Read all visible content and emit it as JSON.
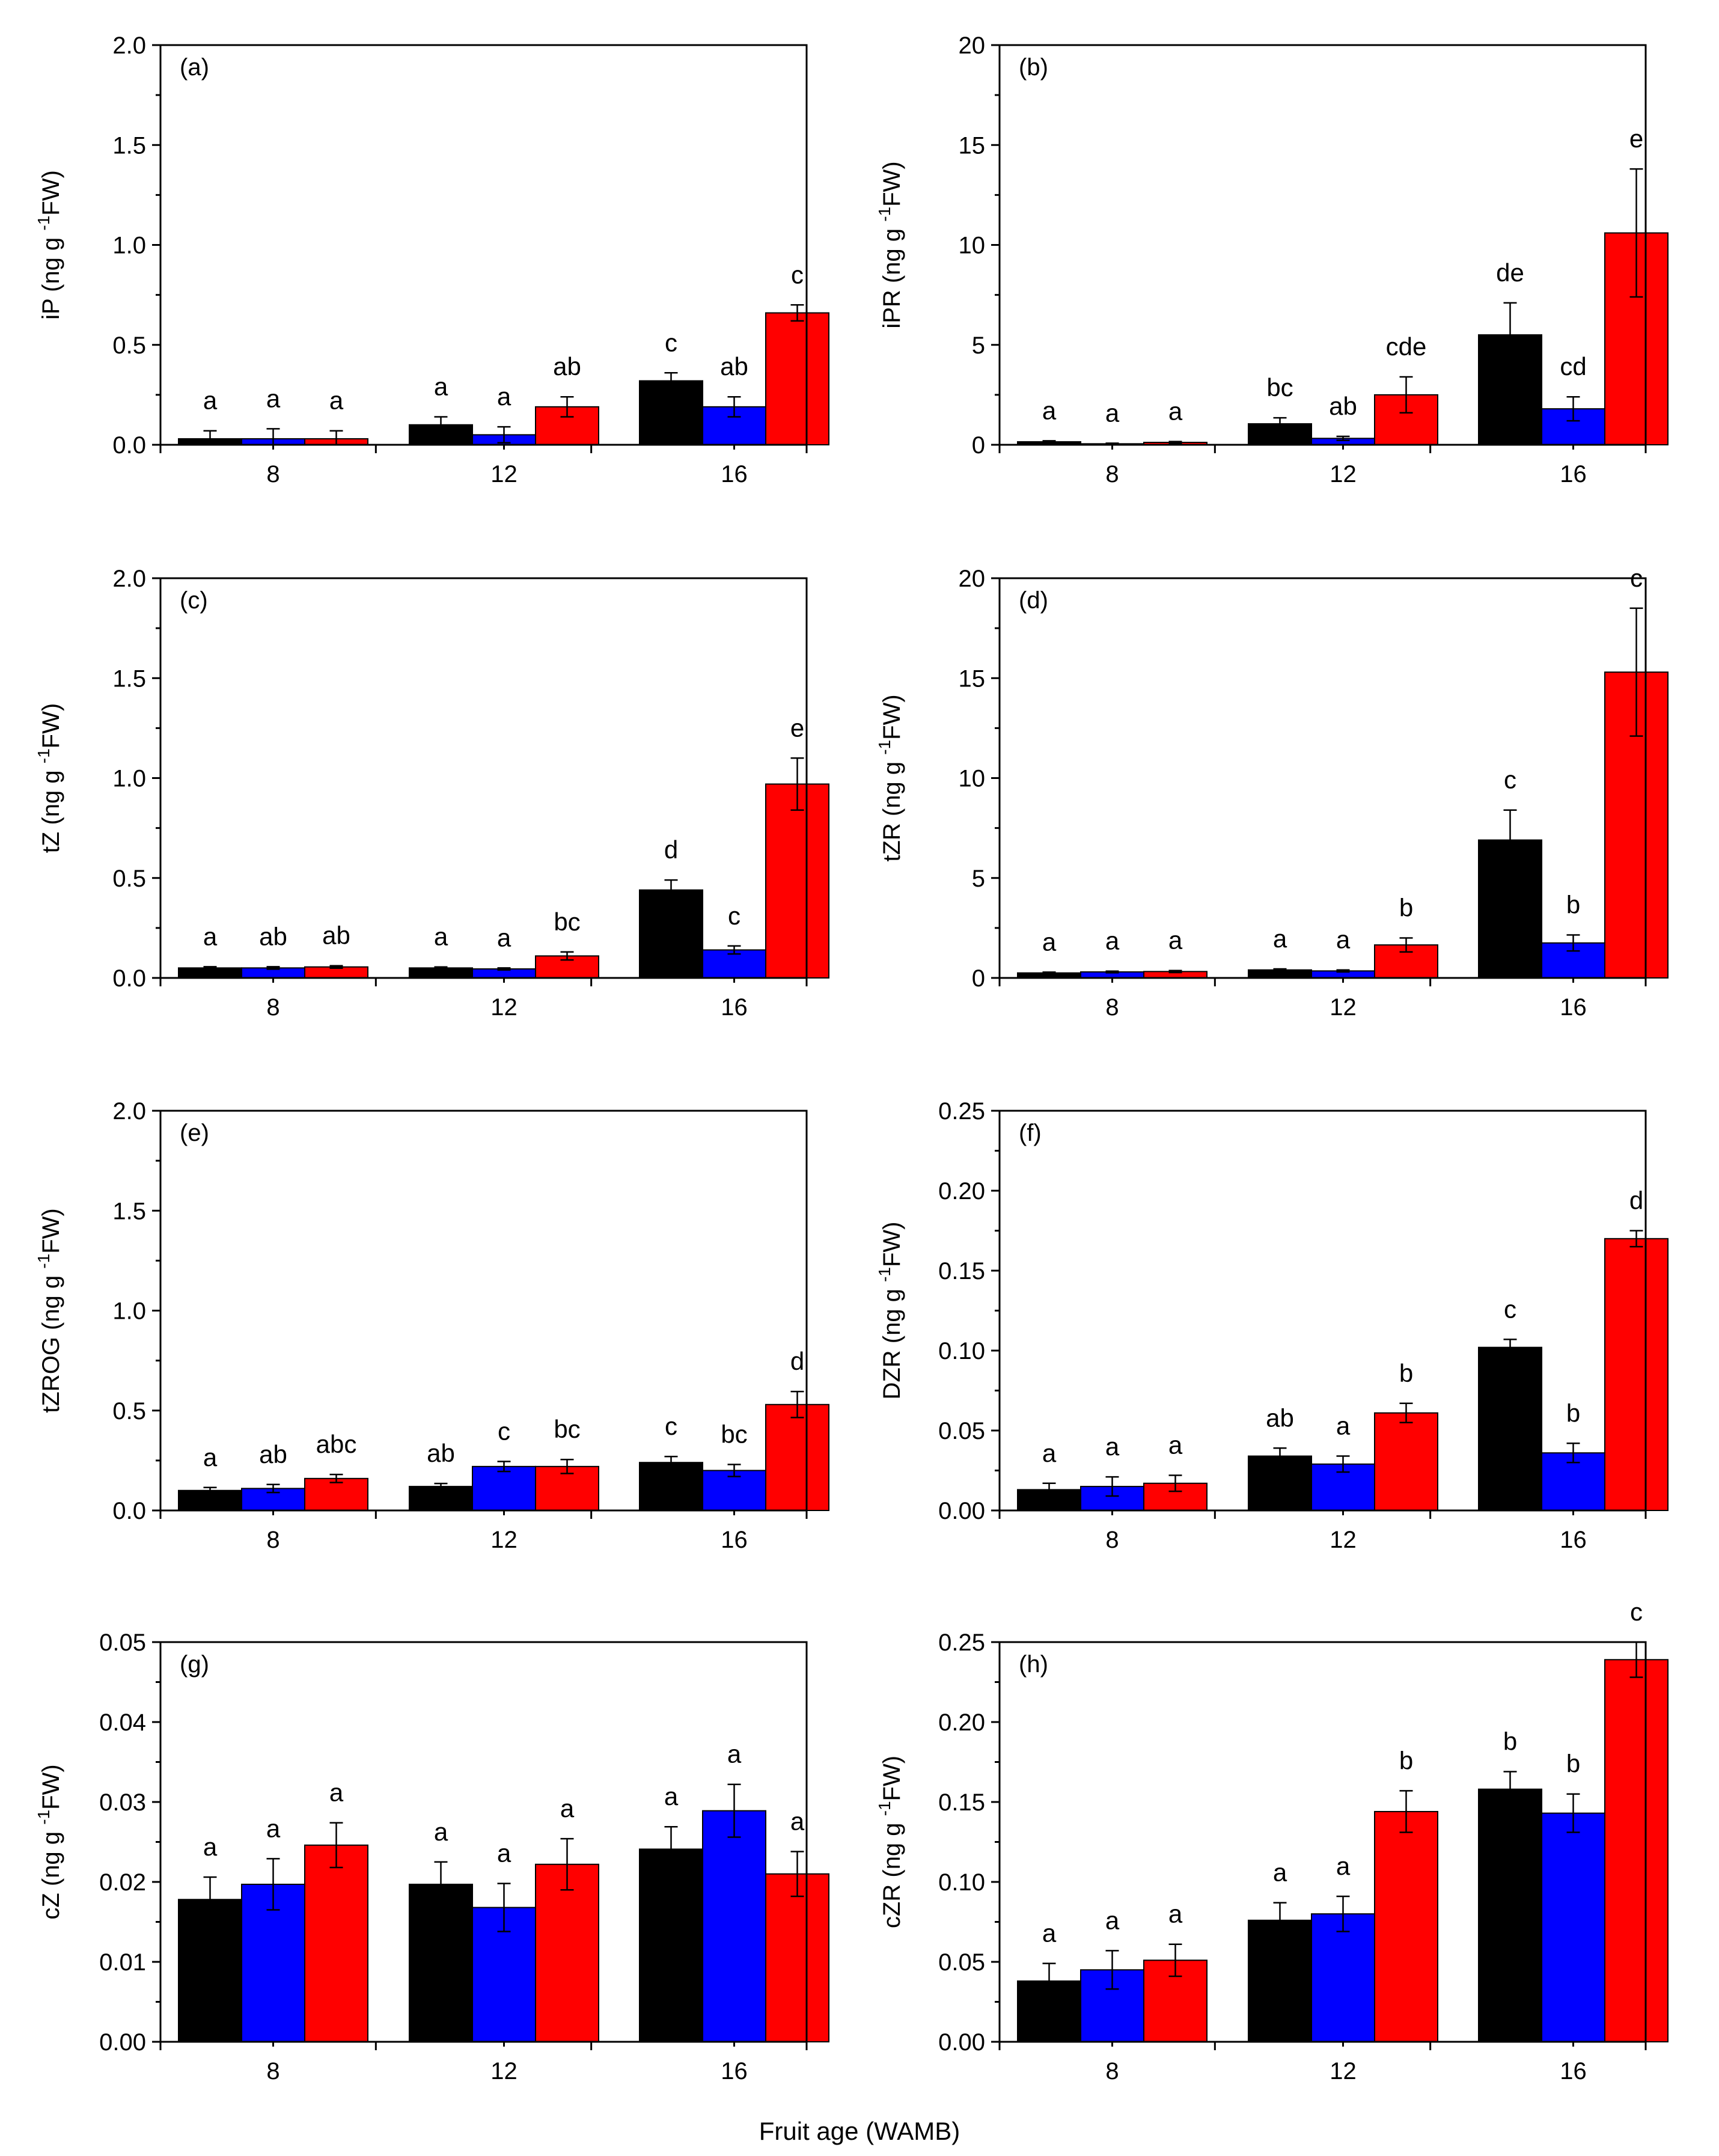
{
  "x_axis_title": "Fruit age (WAMB)",
  "colors": {
    "series_1": "#000000",
    "series_2": "#0000ff",
    "series_3": "#ff0000"
  },
  "chart_data": [
    {
      "type": "bar",
      "panel": "(a)",
      "ylabel_main": "iP",
      "ylabel_unit": "(ng g",
      "ylabel_sup": "-1",
      "ylabel_tail": "FW)",
      "categories": [
        "8",
        "12",
        "16"
      ],
      "ylim": [
        0,
        2.0
      ],
      "yticks": [
        0,
        0.5,
        1.0,
        1.5,
        2.0
      ],
      "yticklabels": [
        "0.0",
        "0.5",
        "1.0",
        "1.5",
        "2.0"
      ],
      "series": [
        {
          "name": "black",
          "values": [
            0.03,
            0.1,
            0.32
          ],
          "errors": [
            0.04,
            0.04,
            0.04
          ],
          "labels": [
            "a",
            "a",
            "c"
          ]
        },
        {
          "name": "blue",
          "values": [
            0.03,
            0.05,
            0.19
          ],
          "errors": [
            0.05,
            0.04,
            0.05
          ],
          "labels": [
            "a",
            "a",
            "ab"
          ]
        },
        {
          "name": "red",
          "values": [
            0.03,
            0.19,
            0.66
          ],
          "errors": [
            0.04,
            0.05,
            0.04
          ],
          "labels": [
            "a",
            "ab",
            "c"
          ]
        }
      ]
    },
    {
      "type": "bar",
      "panel": "(b)",
      "ylabel_main": "iPR",
      "ylabel_unit": "(ng g",
      "ylabel_sup": "-1",
      "ylabel_tail": "FW)",
      "categories": [
        "8",
        "12",
        "16"
      ],
      "ylim": [
        0,
        20
      ],
      "yticks": [
        0,
        5,
        10,
        15,
        20
      ],
      "yticklabels": [
        "0",
        "5",
        "10",
        "15",
        "20"
      ],
      "series": [
        {
          "name": "black",
          "values": [
            0.15,
            1.05,
            5.5
          ],
          "errors": [
            0.05,
            0.3,
            1.6
          ],
          "labels": [
            "a",
            "bc",
            "de"
          ]
        },
        {
          "name": "blue",
          "values": [
            0.05,
            0.32,
            1.8
          ],
          "errors": [
            0.03,
            0.1,
            0.6
          ],
          "labels": [
            "a",
            "ab",
            "cd"
          ]
        },
        {
          "name": "red",
          "values": [
            0.12,
            2.5,
            10.6
          ],
          "errors": [
            0.04,
            0.9,
            3.2
          ],
          "labels": [
            "a",
            "cde",
            "e"
          ]
        }
      ]
    },
    {
      "type": "bar",
      "panel": "(c)",
      "ylabel_main": "tZ",
      "ylabel_unit": "(ng g",
      "ylabel_sup": "-1",
      "ylabel_tail": "FW)",
      "categories": [
        "8",
        "12",
        "16"
      ],
      "ylim": [
        0,
        2.0
      ],
      "yticks": [
        0,
        0.5,
        1.0,
        1.5,
        2.0
      ],
      "yticklabels": [
        "0.0",
        "0.5",
        "1.0",
        "1.5",
        "2.0"
      ],
      "series": [
        {
          "name": "black",
          "values": [
            0.05,
            0.05,
            0.44
          ],
          "errors": [
            0.006,
            0.005,
            0.05
          ],
          "labels": [
            "a",
            "a",
            "d"
          ]
        },
        {
          "name": "blue",
          "values": [
            0.05,
            0.045,
            0.14
          ],
          "errors": [
            0.006,
            0.005,
            0.02
          ],
          "labels": [
            "ab",
            "a",
            "c"
          ]
        },
        {
          "name": "red",
          "values": [
            0.055,
            0.11,
            0.97
          ],
          "errors": [
            0.006,
            0.02,
            0.13
          ],
          "labels": [
            "ab",
            "bc",
            "e"
          ]
        }
      ]
    },
    {
      "type": "bar",
      "panel": "(d)",
      "ylabel_main": "tZR",
      "ylabel_unit": "(ng g",
      "ylabel_sup": "-1",
      "ylabel_tail": "FW)",
      "categories": [
        "8",
        "12",
        "16"
      ],
      "ylim": [
        0,
        20
      ],
      "yticks": [
        0,
        5,
        10,
        15,
        20
      ],
      "yticklabels": [
        "0",
        "5",
        "10",
        "15",
        "20"
      ],
      "series": [
        {
          "name": "black",
          "values": [
            0.25,
            0.4,
            6.9
          ],
          "errors": [
            0.04,
            0.05,
            1.5
          ],
          "labels": [
            "a",
            "a",
            "c"
          ]
        },
        {
          "name": "blue",
          "values": [
            0.3,
            0.35,
            1.75
          ],
          "errors": [
            0.04,
            0.05,
            0.4
          ],
          "labels": [
            "a",
            "a",
            "b"
          ]
        },
        {
          "name": "red",
          "values": [
            0.32,
            1.65,
            15.3
          ],
          "errors": [
            0.05,
            0.35,
            3.2
          ],
          "labels": [
            "a",
            "b",
            "c"
          ]
        }
      ]
    },
    {
      "type": "bar",
      "panel": "(e)",
      "ylabel_main": "tZROG",
      "ylabel_unit": "(ng g",
      "ylabel_sup": "-1",
      "ylabel_tail": "FW)",
      "categories": [
        "8",
        "12",
        "16"
      ],
      "ylim": [
        0,
        2.0
      ],
      "yticks": [
        0,
        0.5,
        1.0,
        1.5,
        2.0
      ],
      "yticklabels": [
        "0.0",
        "0.5",
        "1.0",
        "1.5",
        "2.0"
      ],
      "series": [
        {
          "name": "black",
          "values": [
            0.1,
            0.12,
            0.24
          ],
          "errors": [
            0.015,
            0.015,
            0.03
          ],
          "labels": [
            "a",
            "ab",
            "c"
          ]
        },
        {
          "name": "blue",
          "values": [
            0.11,
            0.22,
            0.2
          ],
          "errors": [
            0.02,
            0.025,
            0.03
          ],
          "labels": [
            "ab",
            "c",
            "bc"
          ]
        },
        {
          "name": "red",
          "values": [
            0.16,
            0.22,
            0.53
          ],
          "errors": [
            0.02,
            0.035,
            0.065
          ],
          "labels": [
            "abc",
            "bc",
            "d"
          ]
        }
      ]
    },
    {
      "type": "bar",
      "panel": "(f)",
      "ylabel_main": "DZR",
      "ylabel_unit": "(ng g",
      "ylabel_sup": "-1",
      "ylabel_tail": "FW)",
      "categories": [
        "8",
        "12",
        "16"
      ],
      "ylim": [
        0,
        0.25
      ],
      "yticks": [
        0,
        0.05,
        0.1,
        0.15,
        0.2,
        0.25
      ],
      "yticklabels": [
        "0.00",
        "0.05",
        "0.10",
        "0.15",
        "0.20",
        "0.25"
      ],
      "series": [
        {
          "name": "black",
          "values": [
            0.013,
            0.034,
            0.102
          ],
          "errors": [
            0.004,
            0.005,
            0.005
          ],
          "labels": [
            "a",
            "ab",
            "c"
          ]
        },
        {
          "name": "blue",
          "values": [
            0.015,
            0.029,
            0.036
          ],
          "errors": [
            0.006,
            0.005,
            0.006
          ],
          "labels": [
            "a",
            "a",
            "b"
          ]
        },
        {
          "name": "red",
          "values": [
            0.017,
            0.061,
            0.17
          ],
          "errors": [
            0.005,
            0.006,
            0.005
          ],
          "labels": [
            "a",
            "b",
            "d"
          ]
        }
      ]
    },
    {
      "type": "bar",
      "panel": "(g)",
      "ylabel_main": "cZ",
      "ylabel_unit": "(ng g",
      "ylabel_sup": "-1",
      "ylabel_tail": "FW)",
      "categories": [
        "8",
        "12",
        "16"
      ],
      "ylim": [
        0,
        0.05
      ],
      "yticks": [
        0,
        0.01,
        0.02,
        0.03,
        0.04,
        0.05
      ],
      "yticklabels": [
        "0.00",
        "0.01",
        "0.02",
        "0.03",
        "0.04",
        "0.05"
      ],
      "series": [
        {
          "name": "black",
          "values": [
            0.0178,
            0.0197,
            0.0241
          ],
          "errors": [
            0.0028,
            0.0028,
            0.0028
          ],
          "labels": [
            "a",
            "a",
            "a"
          ]
        },
        {
          "name": "blue",
          "values": [
            0.0197,
            0.0168,
            0.0289
          ],
          "errors": [
            0.0032,
            0.003,
            0.0033
          ],
          "labels": [
            "a",
            "a",
            "a"
          ]
        },
        {
          "name": "red",
          "values": [
            0.0246,
            0.0222,
            0.021
          ],
          "errors": [
            0.0028,
            0.0032,
            0.0028
          ],
          "labels": [
            "a",
            "a",
            "a"
          ]
        }
      ]
    },
    {
      "type": "bar",
      "panel": "(h)",
      "ylabel_main": "cZR",
      "ylabel_unit": "(ng g",
      "ylabel_sup": "-1",
      "ylabel_tail": "FW)",
      "categories": [
        "8",
        "12",
        "16"
      ],
      "ylim": [
        0,
        0.25
      ],
      "yticks": [
        0,
        0.05,
        0.1,
        0.15,
        0.2,
        0.25
      ],
      "yticklabels": [
        "0.00",
        "0.05",
        "0.10",
        "0.15",
        "0.20",
        "0.25"
      ],
      "series": [
        {
          "name": "black",
          "values": [
            0.038,
            0.076,
            0.158
          ],
          "errors": [
            0.011,
            0.011,
            0.011
          ],
          "labels": [
            "a",
            "a",
            "b"
          ]
        },
        {
          "name": "blue",
          "values": [
            0.045,
            0.08,
            0.143
          ],
          "errors": [
            0.012,
            0.011,
            0.012
          ],
          "labels": [
            "a",
            "a",
            "b"
          ]
        },
        {
          "name": "red",
          "values": [
            0.051,
            0.144,
            0.239
          ],
          "errors": [
            0.01,
            0.013,
            0.011
          ],
          "labels": [
            "a",
            "b",
            "c"
          ]
        }
      ]
    }
  ]
}
